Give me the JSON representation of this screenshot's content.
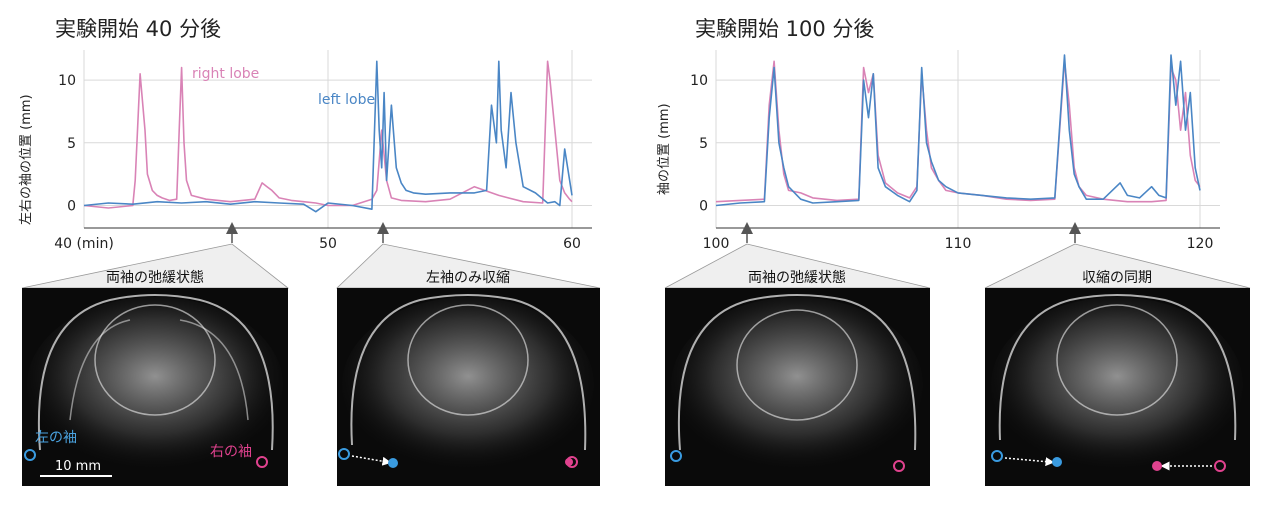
{
  "colors": {
    "left_lobe": "#4a86c5",
    "right_lobe": "#d983b6",
    "left_marker": "#3a9be0",
    "right_marker": "#e0428e",
    "photo_bg": "#0a0a0a"
  },
  "panels": [
    {
      "title": "実験開始 40 分後",
      "ylabel": "左右の袖の位置 (mm)",
      "xticks": [
        "40 (min)",
        "50",
        "60"
      ],
      "yticks": [
        "0",
        "5",
        "10"
      ],
      "legend": {
        "right": "right lobe",
        "left": "left lobe"
      },
      "photos": [
        {
          "label": "両袖の弛緩状態",
          "left_marker": "左の袖",
          "right_marker": "右の袖",
          "scale": "10 mm"
        },
        {
          "label": "左袖のみ収縮"
        }
      ]
    },
    {
      "title": "実験開始 100 分後",
      "ylabel": "袖の位置 (mm)",
      "xticks": [
        "100",
        "110",
        "120"
      ],
      "yticks": [
        "0",
        "5",
        "10"
      ],
      "photos": [
        {
          "label": "両袖の弛緩状態"
        },
        {
          "label": "収縮の同期"
        }
      ]
    }
  ],
  "chart_data": [
    {
      "type": "line",
      "title": "実験開始 40 分後",
      "xlabel": "",
      "ylabel": "左右の袖の位置 (mm)",
      "xlim": [
        40,
        60
      ],
      "ylim": [
        -1,
        12
      ],
      "xticks": [
        40,
        50,
        60
      ],
      "yticks": [
        0,
        5,
        10
      ],
      "grid": true,
      "legend": "inline",
      "arrows_at": [
        46,
        52
      ],
      "series": [
        {
          "name": "right lobe",
          "x": [
            40,
            41,
            42,
            42.1,
            42.3,
            42.5,
            42.6,
            42.8,
            43,
            43.2,
            43.5,
            43.8,
            43.9,
            44.0,
            44.1,
            44.2,
            44.4,
            45,
            46,
            47,
            47.3,
            47.5,
            47.7,
            48,
            48.5,
            49,
            49.5,
            50,
            51,
            51.8,
            52,
            52.2,
            52.4,
            52.6,
            53,
            54,
            55,
            56,
            57,
            58,
            58.8,
            59.0,
            59.1,
            59.3,
            59.5,
            59.7,
            59.9,
            60
          ],
          "values": [
            0,
            -0.2,
            0,
            2,
            10.5,
            6,
            2.5,
            1.2,
            0.8,
            0.6,
            0.4,
            0.5,
            6,
            11,
            5,
            2,
            0.8,
            0.5,
            0.3,
            0.5,
            1.8,
            1.5,
            1.2,
            0.6,
            0.4,
            0.3,
            0.2,
            0.0,
            0.0,
            0.5,
            1.2,
            6,
            2,
            0.6,
            0.4,
            0.3,
            0.5,
            1.5,
            0.8,
            0.3,
            0.2,
            11.5,
            10,
            6,
            2,
            1,
            0.5,
            0.3
          ]
        },
        {
          "name": "left lobe",
          "x": [
            40,
            41,
            42,
            43,
            44,
            45,
            46,
            47,
            48,
            49,
            49.5,
            50,
            51,
            51.8,
            52,
            52.1,
            52.2,
            52.3,
            52.4,
            52.6,
            52.8,
            53,
            53.2,
            53.5,
            54,
            55,
            56,
            56.5,
            56.7,
            56.9,
            57.0,
            57.1,
            57.3,
            57.5,
            57.7,
            58,
            58.5,
            59,
            59.3,
            59.5,
            59.7,
            60
          ],
          "values": [
            0,
            0.2,
            0.1,
            0.3,
            0.2,
            0.3,
            0.1,
            0.3,
            0.2,
            0.1,
            -0.5,
            0.2,
            0.0,
            -0.3,
            11.5,
            6,
            3,
            9,
            2,
            8,
            3,
            1.8,
            1.2,
            1.0,
            0.9,
            1.0,
            1.0,
            1.2,
            8,
            5,
            11.5,
            6,
            3,
            9,
            5,
            1.5,
            1.0,
            0.2,
            0.3,
            0.0,
            4.5,
            0.8
          ]
        }
      ]
    },
    {
      "type": "line",
      "title": "実験開始 100 分後",
      "xlabel": "",
      "ylabel": "袖の位置 (mm)",
      "xlim": [
        100,
        120
      ],
      "ylim": [
        -1,
        12
      ],
      "xticks": [
        100,
        110,
        120
      ],
      "yticks": [
        0,
        5,
        10
      ],
      "grid": true,
      "arrows_at": [
        101,
        114.5
      ],
      "series": [
        {
          "name": "right lobe",
          "x": [
            100,
            101,
            102,
            102.2,
            102.4,
            102.6,
            102.8,
            103,
            103.5,
            104,
            105,
            105.9,
            106.1,
            106.3,
            106.5,
            106.7,
            107,
            107.5,
            108,
            108.3,
            108.5,
            108.7,
            108.9,
            109.2,
            109.5,
            110,
            111,
            112,
            113,
            114,
            114.4,
            114.6,
            114.8,
            115,
            115.3,
            116,
            117,
            118,
            118.6,
            118.8,
            119.0,
            119.2,
            119.4,
            119.6,
            119.8,
            120
          ],
          "values": [
            0.3,
            0.4,
            0.5,
            8,
            11.5,
            6,
            2.5,
            1.2,
            1.0,
            0.6,
            0.4,
            0.5,
            11,
            9,
            10.5,
            4,
            1.8,
            1.0,
            0.6,
            1.5,
            10.5,
            6,
            3,
            2,
            1.2,
            1.0,
            0.8,
            0.5,
            0.4,
            0.5,
            11.5,
            8,
            3,
            1.5,
            0.8,
            0.5,
            0.3,
            0.3,
            0.4,
            11,
            10,
            6,
            9,
            4,
            2,
            1.5
          ]
        },
        {
          "name": "left lobe",
          "x": [
            100,
            101,
            102,
            102.2,
            102.4,
            102.6,
            102.8,
            103,
            103.5,
            104,
            105,
            105.9,
            106.1,
            106.3,
            106.5,
            106.7,
            107,
            107.5,
            108,
            108.3,
            108.5,
            108.7,
            108.9,
            109.2,
            109.5,
            110,
            111,
            112,
            113,
            114,
            114.4,
            114.6,
            114.8,
            115,
            115.3,
            116,
            116.7,
            117,
            117.5,
            118,
            118.3,
            118.6,
            118.8,
            119.0,
            119.2,
            119.4,
            119.6,
            119.8,
            120
          ],
          "values": [
            0.0,
            0.2,
            0.3,
            7,
            11,
            5,
            3,
            1.5,
            0.5,
            0.2,
            0.3,
            0.4,
            10,
            7,
            10.5,
            3,
            1.5,
            0.8,
            0.3,
            1.2,
            11,
            5,
            3.5,
            2,
            1.5,
            1.0,
            0.8,
            0.6,
            0.5,
            0.6,
            12,
            6,
            2.5,
            1.5,
            0.5,
            0.5,
            1.8,
            0.8,
            0.6,
            1.5,
            0.8,
            0.6,
            12,
            8,
            11.5,
            6,
            9,
            3,
            1.2
          ]
        }
      ]
    }
  ]
}
